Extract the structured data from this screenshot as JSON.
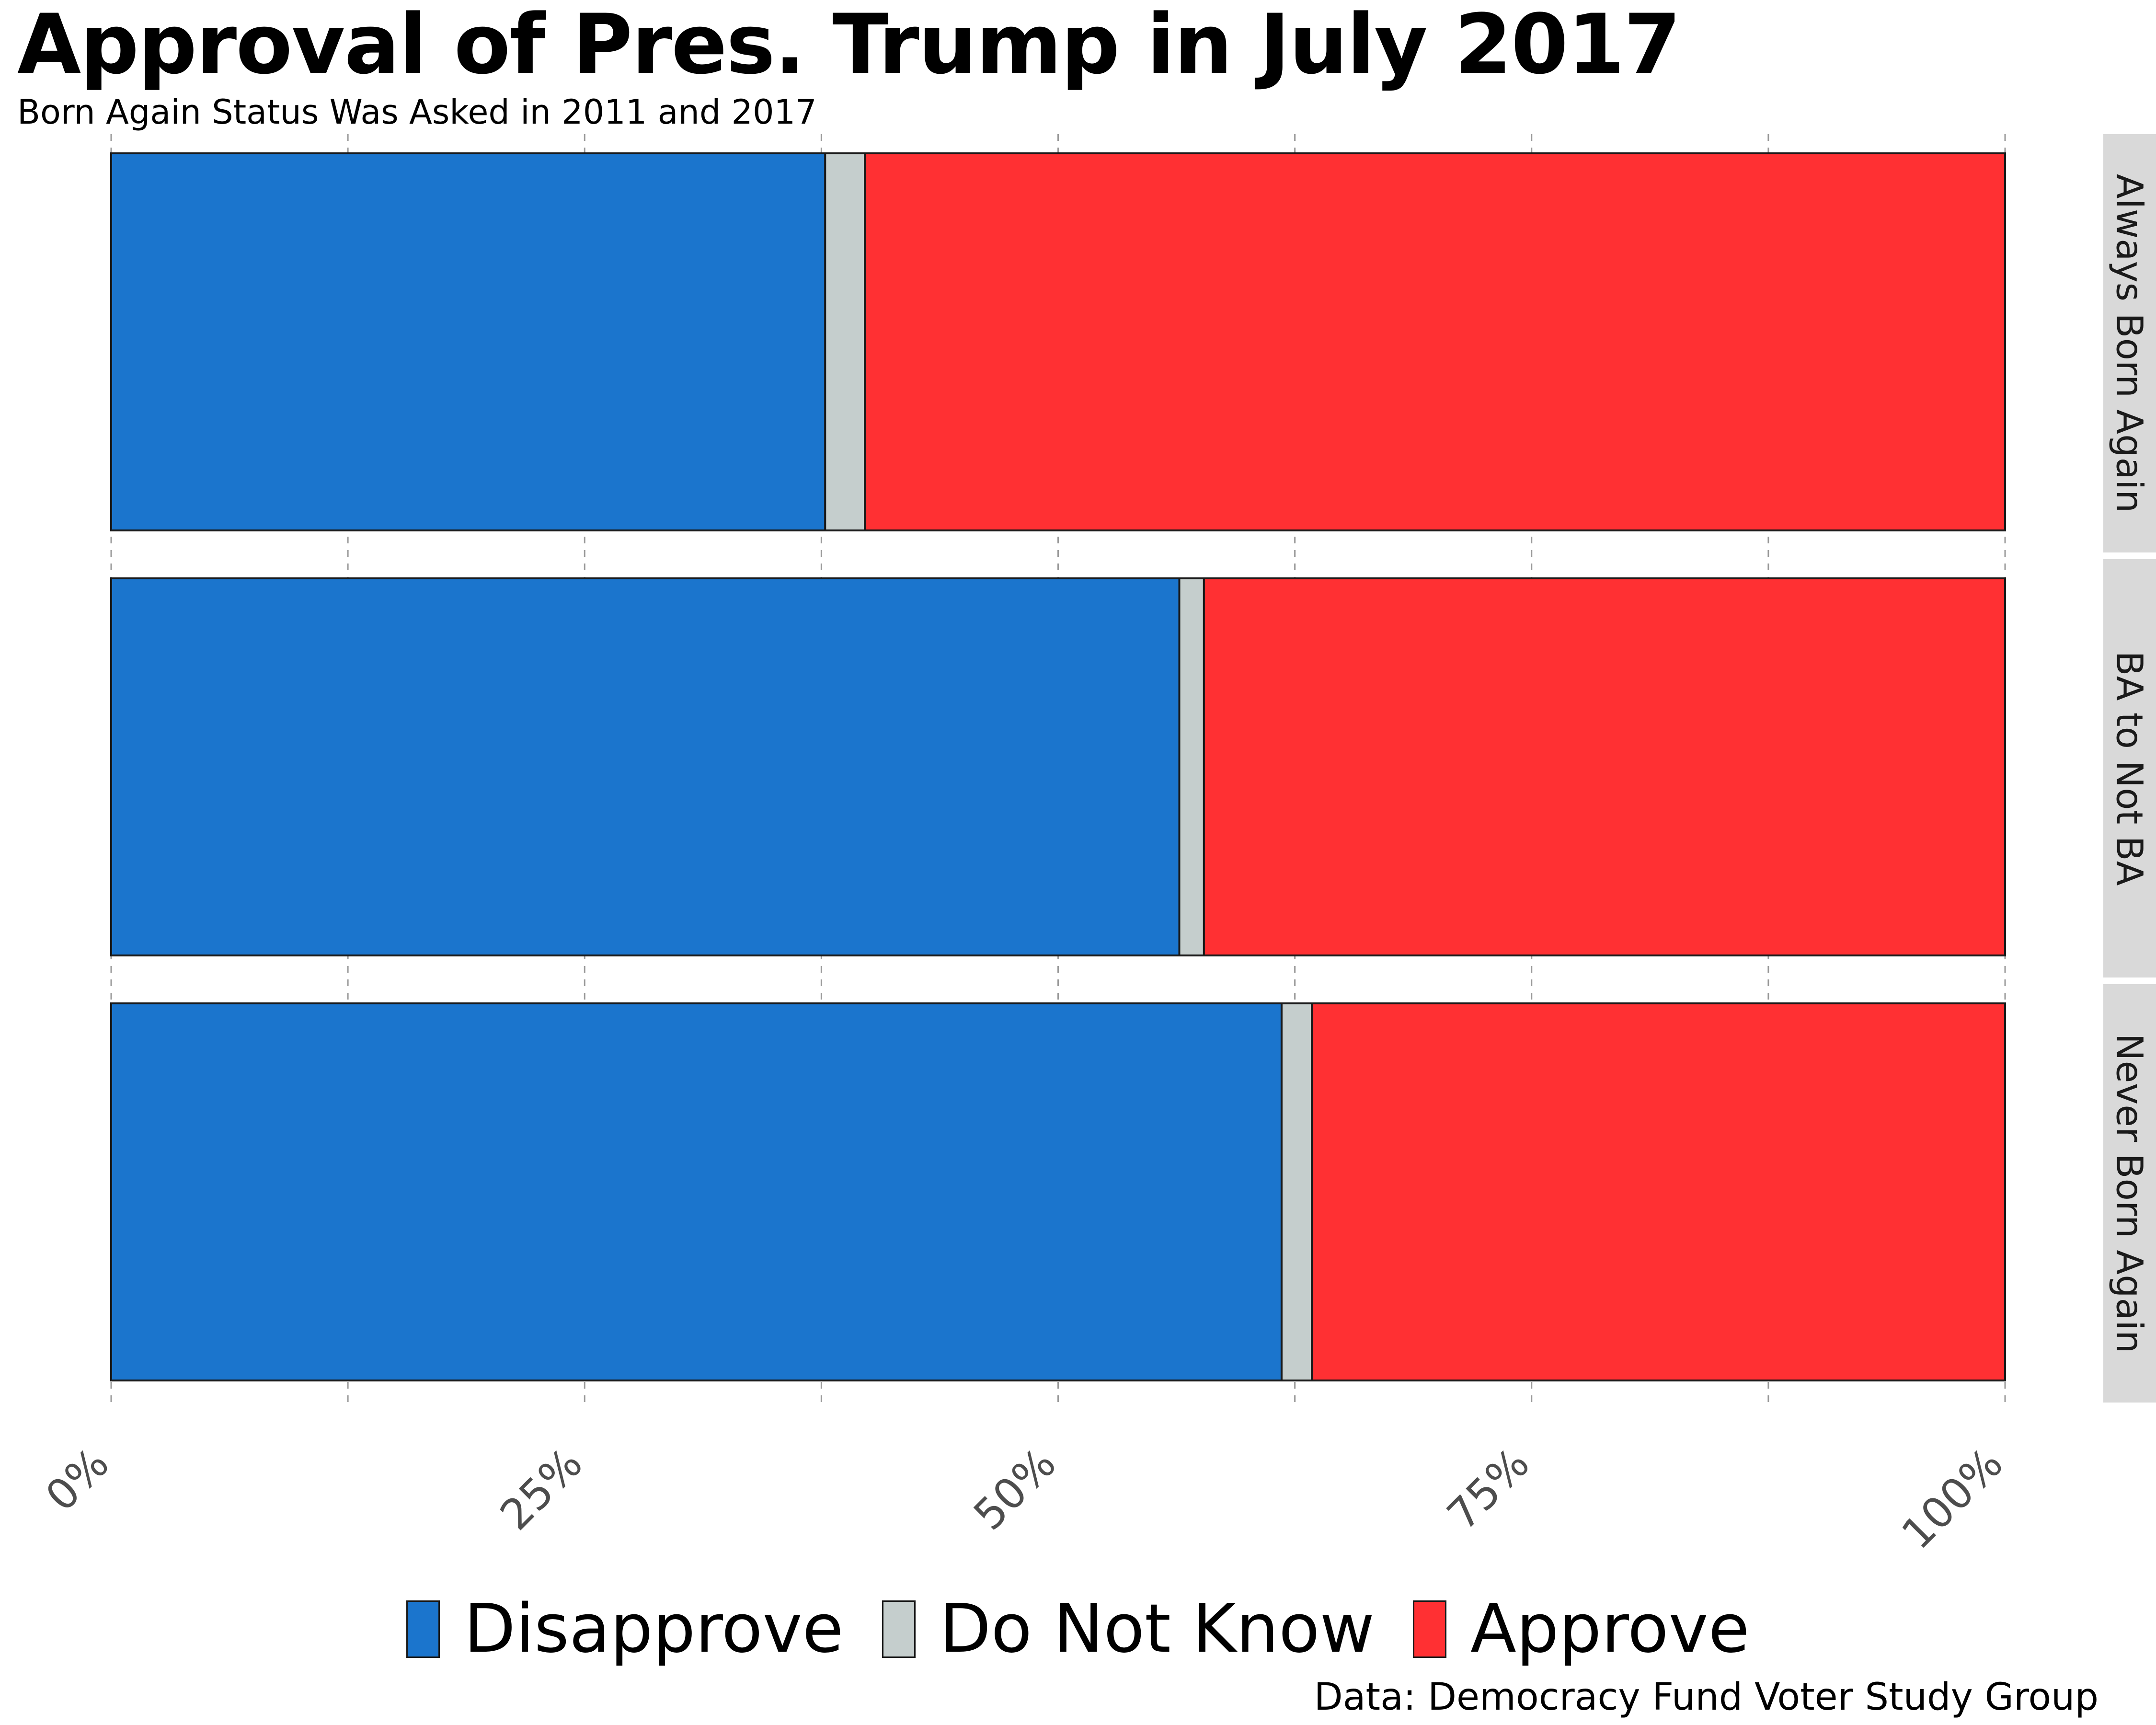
{
  "chart_data": {
    "type": "bar",
    "orientation": "horizontal",
    "stacked": true,
    "normalized": true,
    "title": "Approval of Pres. Trump in July 2017",
    "subtitle": "Born Again Status Was Asked in 2011 and 2017",
    "caption": "Data: Democracy Fund Voter Study Group",
    "xlim": [
      0,
      1
    ],
    "x_ticks": [
      0,
      0.25,
      0.5,
      0.75,
      1.0
    ],
    "x_tick_labels": [
      "0%",
      "25%",
      "50%",
      "75%",
      "100%"
    ],
    "grid": "vertical dashed",
    "legend_position": "bottom",
    "categories": [
      "Always Born Again",
      "BA to Not BA",
      "Never Born Again"
    ],
    "series": [
      {
        "name": "Disapprove",
        "color": "#1B75CD",
        "values": [
          0.377,
          0.564,
          0.618
        ]
      },
      {
        "name": "Do Not Know",
        "color": "#C5CECD",
        "values": [
          0.021,
          0.013,
          0.016
        ]
      },
      {
        "name": "Approve",
        "color": "#FF3033",
        "values": [
          0.602,
          0.423,
          0.366
        ]
      }
    ]
  }
}
